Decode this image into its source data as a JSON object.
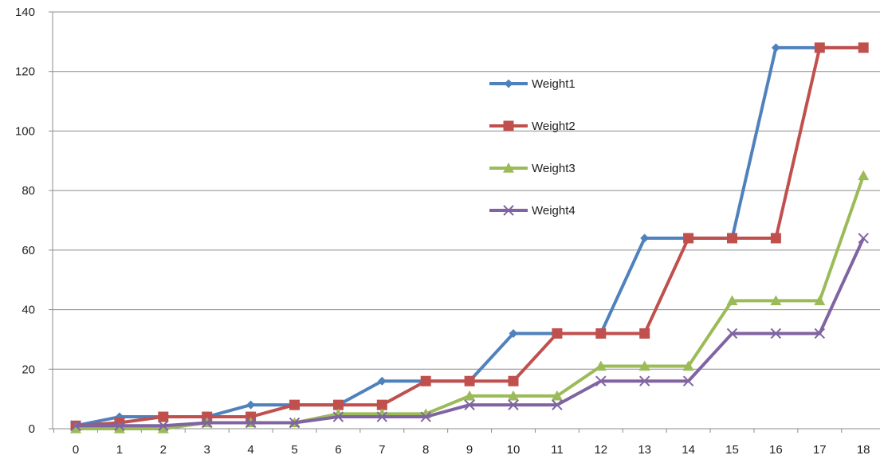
{
  "chart_data": {
    "type": "line",
    "title": "",
    "xlabel": "",
    "ylabel": "",
    "x": [
      0,
      1,
      2,
      3,
      4,
      5,
      6,
      7,
      8,
      9,
      10,
      11,
      12,
      13,
      14,
      15,
      16,
      17,
      18
    ],
    "x_tick_labels": [
      "0",
      "1",
      "2",
      "3",
      "4",
      "5",
      "6",
      "7",
      "8",
      "9",
      "10",
      "11",
      "12",
      "13",
      "14",
      "15",
      "16",
      "17",
      "18"
    ],
    "ylim": [
      0,
      140
    ],
    "y_tick_labels": [
      "0",
      "20",
      "40",
      "60",
      "80",
      "100",
      "120",
      "140"
    ],
    "y_ticks": [
      0,
      20,
      40,
      60,
      80,
      100,
      120,
      140
    ],
    "grid": "horizontal",
    "legend_position": "inside-top-center",
    "series": [
      {
        "name": "Weight1",
        "color": "#4f81bd",
        "marker": "diamond",
        "values": [
          1,
          4,
          4,
          4,
          8,
          8,
          8,
          16,
          16,
          16,
          32,
          32,
          32,
          64,
          64,
          64,
          128,
          128,
          128
        ]
      },
      {
        "name": "Weight2",
        "color": "#c0504d",
        "marker": "square",
        "values": [
          1,
          2,
          4,
          4,
          4,
          8,
          8,
          8,
          16,
          16,
          16,
          32,
          32,
          32,
          64,
          64,
          64,
          128,
          128
        ]
      },
      {
        "name": "Weight3",
        "color": "#9bbb59",
        "marker": "triangle",
        "values": [
          0,
          0,
          0,
          2,
          2,
          2,
          5,
          5,
          5,
          11,
          11,
          11,
          21,
          21,
          21,
          43,
          43,
          43,
          85
        ]
      },
      {
        "name": "Weight4",
        "color": "#8064a2",
        "marker": "x",
        "values": [
          1,
          1,
          1,
          2,
          2,
          2,
          4,
          4,
          4,
          8,
          8,
          8,
          16,
          16,
          16,
          32,
          32,
          32,
          64
        ]
      }
    ]
  }
}
